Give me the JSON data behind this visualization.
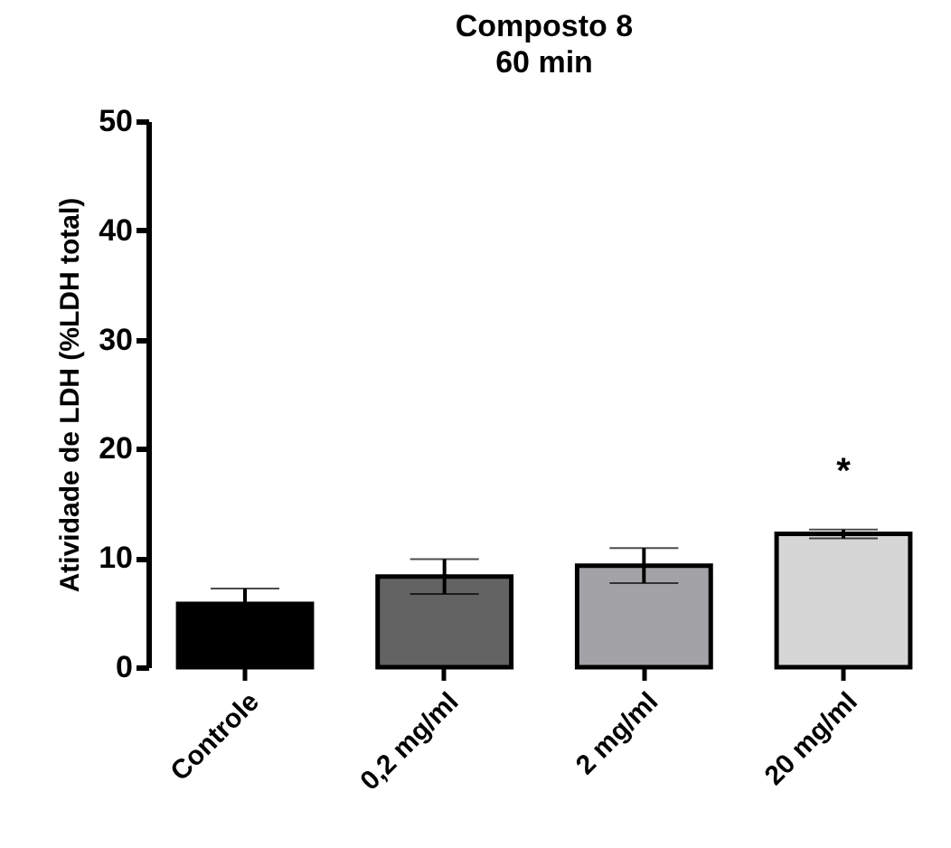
{
  "chart_data": {
    "type": "bar",
    "title": [
      "Composto 8",
      "60 min"
    ],
    "ylabel": "Atividade de LDH (%LDH total)",
    "categories": [
      "Controle",
      "0,2 mg/ml",
      "2 mg/ml",
      "20 mg/ml"
    ],
    "values": [
      5.8,
      8.3,
      9.3,
      12.2
    ],
    "errors": [
      1.4,
      1.6,
      1.6,
      0.4
    ],
    "colors": [
      "#000000",
      "#636363",
      "#a3a3a7",
      "#d6d6d6"
    ],
    "ylim": [
      0,
      50
    ],
    "yticks": [
      0,
      10,
      20,
      30,
      40,
      50
    ],
    "grid": false,
    "annotations": [
      "*"
    ]
  }
}
